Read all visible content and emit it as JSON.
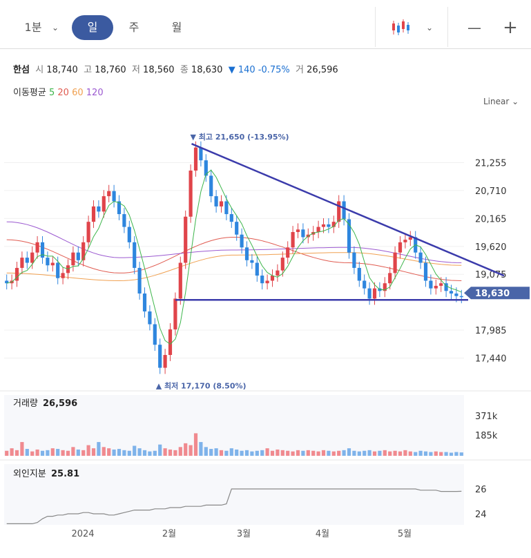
{
  "toolbar": {
    "interval_minute": "1분",
    "tab_day": "일",
    "tab_week": "주",
    "tab_month": "월",
    "zoom_out": "—",
    "zoom_in": "+"
  },
  "info": {
    "name": "한섬",
    "open_label": "시",
    "open": "18,740",
    "high_label": "고",
    "high": "18,760",
    "low_label": "저",
    "low": "18,560",
    "close_label": "종",
    "close": "18,630",
    "change": "▼ 140",
    "change_pct": "-0.75%",
    "volume_label": "거",
    "volume": "26,596"
  },
  "ma": {
    "label": "이동평균",
    "periods": [
      {
        "text": "5",
        "color": "#3cb54a"
      },
      {
        "text": "20",
        "color": "#e05a4f"
      },
      {
        "text": "60",
        "color": "#f0a050"
      },
      {
        "text": "120",
        "color": "#9b59d0"
      }
    ]
  },
  "scale_label": "Linear",
  "colors": {
    "up": "#e0444a",
    "down": "#2e86de",
    "trend": "#3b3bab",
    "axis_tag": "#4a65a8"
  },
  "chart_data": [
    {
      "type": "candlestick",
      "y_ticks": [
        21255,
        20710,
        20165,
        19620,
        19075,
        17985,
        17440
      ],
      "ylim": [
        16880,
        22300
      ],
      "x_tick_labels": [
        "2024",
        "2월",
        "3월",
        "4월",
        "5월"
      ],
      "current_price": 18630,
      "current_price_label": "18,630",
      "high_annotation": "▼ 최고 21,650 (-13.95%)",
      "low_annotation": "▲ 최저 17,170 (8.50%)",
      "high_point": 21650,
      "low_point": 17170,
      "approx_close_series": [
        18900,
        18950,
        19200,
        19400,
        19300,
        19500,
        19700,
        19400,
        19250,
        19300,
        19000,
        19100,
        19250,
        19500,
        19350,
        19700,
        20100,
        20400,
        20300,
        20600,
        20700,
        20500,
        20250,
        20000,
        19700,
        19200,
        18700,
        18350,
        18100,
        17700,
        17250,
        17500,
        18000,
        18600,
        19300,
        20200,
        21100,
        21550,
        21300,
        21000,
        20600,
        20400,
        20500,
        20250,
        20100,
        19850,
        19600,
        19350,
        19300,
        19050,
        18900,
        18950,
        19050,
        19150,
        19400,
        19600,
        19900,
        19950,
        19800,
        19850,
        19900,
        20000,
        20050,
        20000,
        20100,
        20500,
        20150,
        19500,
        19200,
        18950,
        18800,
        18600,
        18800,
        18750,
        18900,
        19100,
        19500,
        19700,
        19750,
        19800,
        19500,
        19300,
        18950,
        18800,
        18850,
        18900,
        18750,
        18700,
        18650,
        18630
      ],
      "moving_averages_approx": {
        "ma20": [
          19750,
          19100,
          19800,
          19300,
          18950
        ],
        "ma60": [
          19100,
          18950,
          19450,
          19500,
          19250
        ],
        "ma120": [
          20100,
          19400,
          19550,
          19600,
          19300
        ]
      }
    },
    {
      "type": "bar",
      "title": "거래량",
      "value_label": "26,596",
      "y_ticks": [
        "371k",
        "185k"
      ],
      "approx_values_k": [
        40,
        60,
        45,
        110,
        55,
        35,
        50,
        40,
        45,
        60,
        55,
        45,
        40,
        70,
        50,
        45,
        85,
        60,
        110,
        70,
        60,
        50,
        55,
        45,
        40,
        80,
        60,
        45,
        35,
        40,
        90,
        60,
        50,
        45,
        70,
        100,
        85,
        180,
        110,
        70,
        55,
        60,
        45,
        40,
        60,
        50,
        40,
        45,
        35,
        40,
        45,
        60,
        40,
        50,
        45,
        40,
        35,
        45,
        40,
        45,
        40,
        35,
        45,
        40,
        35,
        40,
        45,
        60,
        40,
        35,
        40,
        45,
        35,
        40,
        45,
        35,
        40,
        35,
        45,
        35,
        30,
        40,
        35,
        30,
        35,
        30,
        30,
        25,
        30,
        27
      ]
    },
    {
      "type": "line",
      "title": "외인지분",
      "value_label": "25.81",
      "y_ticks": [
        "26",
        "24"
      ],
      "approx_values": [
        23.2,
        23.2,
        23.2,
        23.2,
        23.2,
        23.2,
        23.3,
        23.6,
        23.8,
        23.8,
        23.9,
        23.9,
        24.0,
        24.0,
        24.0,
        24.1,
        24.1,
        24.0,
        24.0,
        24.0,
        23.9,
        23.9,
        24.0,
        24.1,
        24.2,
        24.3,
        24.3,
        24.3,
        24.3,
        24.4,
        24.4,
        24.4,
        24.5,
        24.5,
        24.5,
        24.6,
        24.6,
        24.6,
        24.6,
        24.7,
        24.7,
        24.7,
        24.7,
        24.8,
        26.0,
        26.0,
        26.0,
        26.0,
        26.0,
        26.0,
        26.0,
        26.0,
        26.0,
        26.0,
        26.0,
        26.0,
        26.0,
        26.0,
        26.0,
        26.0,
        26.0,
        26.0,
        26.0,
        26.0,
        26.0,
        26.0,
        26.0,
        26.0,
        26.0,
        26.0,
        26.0,
        26.0,
        26.0,
        26.0,
        26.0,
        26.0,
        26.0,
        26.0,
        26.0,
        26.0,
        26.0,
        25.9,
        25.9,
        25.9,
        25.9,
        25.8,
        25.8,
        25.8,
        25.8,
        25.81
      ]
    }
  ]
}
